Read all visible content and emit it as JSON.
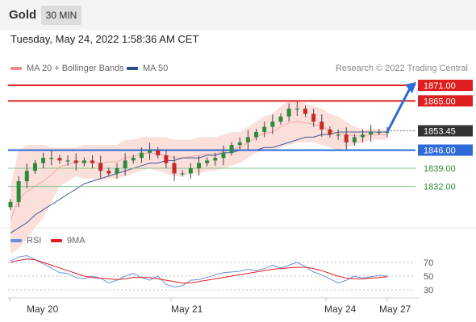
{
  "header": {
    "title": "Gold",
    "timeframe": "30 MIN"
  },
  "timestamp": "Tuesday, May 24, 2022 1:58:36 AM CET",
  "legend": {
    "bb_label": "MA 20 + Bollinger Bands",
    "ma50_label": "MA 50",
    "credit": "Research © 2022 Trading Central"
  },
  "colors": {
    "red": "#e02020",
    "blue": "#2e6bd6",
    "green": "#86c48a",
    "dark": "#333333",
    "bb_fill": "#fad9d5",
    "ma50": "#3b5998",
    "ma20": "#f4a9a0"
  },
  "icons": {
    "arrow": "arrow-up-right-icon"
  },
  "rsi": {
    "legend_rsi": "RSI",
    "legend_9ma": "9MA"
  },
  "chart_data": [
    {
      "type": "candlestick",
      "title": "Gold",
      "levels": [
        {
          "label": "1871.00",
          "value": 1871.0,
          "color": "#e02020"
        },
        {
          "label": "1865.00",
          "value": 1865.0,
          "color": "#e02020"
        },
        {
          "label": "1853.45",
          "value": 1853.45,
          "color": "#333333"
        },
        {
          "label": "1846.00",
          "value": 1846.0,
          "color": "#2e6bd6"
        },
        {
          "label": "1839.00",
          "value": 1839.0,
          "color": "#86c48a"
        },
        {
          "label": "1832.00",
          "value": 1832.0,
          "color": "#86c48a"
        }
      ],
      "x_labels": [
        "May 20",
        "May 21",
        "May 24",
        "May 27"
      ],
      "price": [
        1826,
        1834,
        1838,
        1841,
        1843,
        1843,
        1842,
        1842,
        1841,
        1842,
        1841,
        1838,
        1837,
        1839,
        1842,
        1843,
        1845,
        1846,
        1844,
        1841,
        1837,
        1837,
        1839,
        1841,
        1842,
        1843,
        1845,
        1848,
        1849,
        1851,
        1853,
        1855,
        1857,
        1859,
        1862,
        1862,
        1860,
        1857,
        1854,
        1852,
        1852,
        1849,
        1851,
        1852,
        1853,
        1853,
        1853
      ],
      "ma50": [
        1814,
        1816,
        1818,
        1821,
        1823,
        1825,
        1827,
        1829,
        1831,
        1833,
        1834,
        1835,
        1836,
        1837,
        1838,
        1839,
        1840,
        1841,
        1841,
        1842,
        1842,
        1843,
        1843,
        1843,
        1844,
        1844,
        1845,
        1845,
        1846,
        1846,
        1846,
        1847,
        1847,
        1848,
        1849,
        1850,
        1851,
        1851,
        1852,
        1852,
        1853,
        1853,
        1853,
        1853,
        1853,
        1853,
        1853
      ],
      "bb_upper": [
        1832,
        1846,
        1848,
        1848,
        1848,
        1847,
        1847,
        1847,
        1847,
        1848,
        1848,
        1848,
        1848,
        1848,
        1850,
        1850,
        1851,
        1851,
        1851,
        1851,
        1850,
        1850,
        1850,
        1851,
        1851,
        1851,
        1852,
        1853,
        1853,
        1855,
        1857,
        1859,
        1860,
        1863,
        1865,
        1865,
        1864,
        1863,
        1862,
        1860,
        1859,
        1857,
        1855,
        1854,
        1854,
        1854,
        1854
      ],
      "bb_lower": [
        1806,
        1808,
        1812,
        1816,
        1820,
        1826,
        1832,
        1834,
        1836,
        1835,
        1835,
        1834,
        1835,
        1835,
        1836,
        1837,
        1838,
        1839,
        1838,
        1837,
        1836,
        1836,
        1837,
        1837,
        1838,
        1838,
        1839,
        1840,
        1841,
        1843,
        1845,
        1846,
        1846,
        1847,
        1848,
        1849,
        1849,
        1849,
        1848,
        1847,
        1846,
        1847,
        1848,
        1849,
        1850,
        1850,
        1850
      ],
      "forecast_target": 1871.0
    },
    {
      "type": "line",
      "title": "RSI",
      "series": [
        {
          "name": "RSI",
          "values": [
            72,
            78,
            80,
            74,
            68,
            62,
            55,
            54,
            48,
            46,
            50,
            47,
            40,
            44,
            50,
            54,
            48,
            44,
            50,
            38,
            34,
            36,
            44,
            45,
            48,
            52,
            55,
            56,
            57,
            60,
            58,
            61,
            66,
            62,
            66,
            70,
            64,
            56,
            52,
            46,
            40,
            44,
            50,
            47,
            49,
            51,
            50
          ]
        },
        {
          "name": "9MA",
          "values": [
            70,
            73,
            75,
            74,
            70,
            66,
            62,
            58,
            54,
            50,
            48,
            47,
            46,
            45,
            46,
            48,
            48,
            48,
            46,
            44,
            42,
            40,
            40,
            42,
            44,
            46,
            48,
            50,
            52,
            54,
            56,
            58,
            60,
            61,
            62,
            63,
            63,
            61,
            58,
            54,
            50,
            47,
            46,
            46,
            47,
            48,
            49
          ]
        }
      ],
      "y_ticks": [
        70,
        50,
        30
      ],
      "ylim": [
        20,
        85
      ]
    }
  ]
}
